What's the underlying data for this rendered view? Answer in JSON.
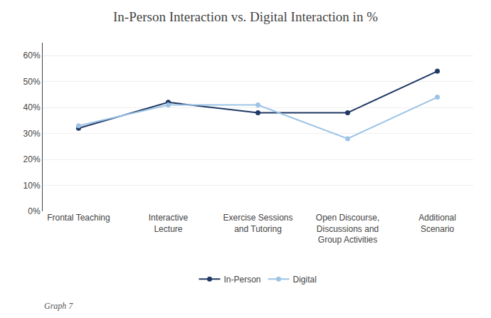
{
  "chart_data": {
    "type": "line",
    "title": "In-Person Interaction vs. Digital Interaction in %",
    "categories": [
      "Frontal Teaching",
      "Interactive\nLecture",
      "Exercise Sessions\nand Tutoring",
      "Open Discourse,\nDiscussions and\nGroup Activities",
      "Additional\nScenario"
    ],
    "series": [
      {
        "name": "In-Person",
        "color": "#1F3864",
        "values": [
          32,
          42,
          38,
          38,
          54
        ]
      },
      {
        "name": "Digital",
        "color": "#9DC3E6",
        "values": [
          33,
          41,
          41,
          28,
          44
        ]
      }
    ],
    "ylim": [
      0,
      65
    ],
    "yticks": [
      {
        "value": 0,
        "label": "0%"
      },
      {
        "value": 10,
        "label": "10%"
      },
      {
        "value": 20,
        "label": "20%"
      },
      {
        "value": 30,
        "label": "30%"
      },
      {
        "value": 40,
        "label": "40%"
      },
      {
        "value": 50,
        "label": "50%"
      },
      {
        "value": 60,
        "label": "60%"
      }
    ],
    "grid": true,
    "legend": "bottom",
    "marker": "circle",
    "line_style": "solid",
    "annotations": [
      "Graph 7"
    ]
  }
}
